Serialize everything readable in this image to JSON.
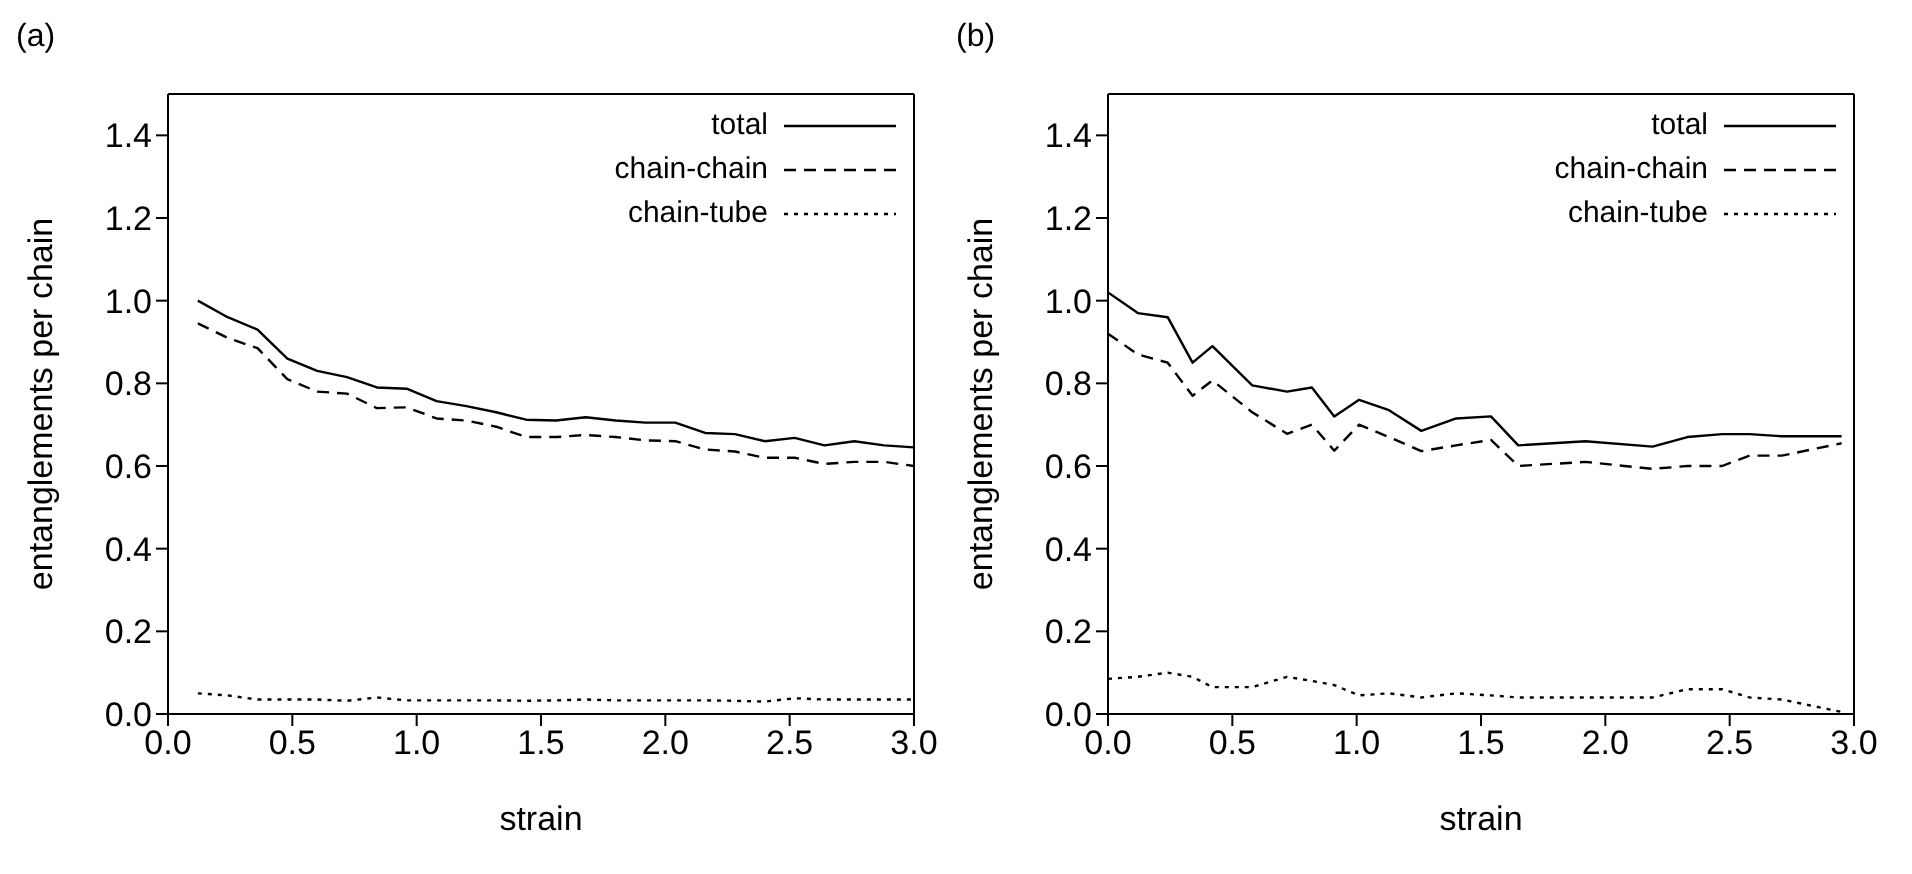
{
  "chart_data": [
    {
      "type": "line",
      "title": "(a)",
      "xlabel": "strain",
      "ylabel": "entanglements per chain",
      "xlim": [
        0,
        3
      ],
      "xticks": [
        {
          "value": 0,
          "label": "0.0"
        },
        {
          "value": 0.5,
          "label": "0.5"
        },
        {
          "value": 1,
          "label": "1.0"
        },
        {
          "value": 1.5,
          "label": "1.5"
        },
        {
          "value": 2,
          "label": "2.0"
        },
        {
          "value": 2.5,
          "label": "2.5"
        },
        {
          "value": 3,
          "label": "3.0"
        }
      ],
      "ylim": [
        0,
        1.5
      ],
      "yticks": [
        {
          "value": 0,
          "label": "0.0"
        },
        {
          "value": 0.2,
          "label": "0.2"
        },
        {
          "value": 0.4,
          "label": "0.4"
        },
        {
          "value": 0.6,
          "label": "0.6"
        },
        {
          "value": 0.8,
          "label": "0.8"
        },
        {
          "value": 1,
          "label": "1.0"
        },
        {
          "value": 1.2,
          "label": "1.2"
        },
        {
          "value": 1.4,
          "label": "1.4"
        }
      ],
      "legend": "top right",
      "grid": false,
      "marker": "none",
      "x": [
        0.12,
        0.24,
        0.36,
        0.48,
        0.6,
        0.72,
        0.84,
        0.96,
        1.08,
        1.2,
        1.32,
        1.44,
        1.56,
        1.68,
        1.8,
        1.92,
        2.04,
        2.16,
        2.28,
        2.4,
        2.52,
        2.64,
        2.76,
        2.88,
        3.0
      ],
      "series": [
        {
          "name": "total",
          "color": "#000000",
          "line_style": "solid",
          "values": [
            1.0,
            0.96,
            0.93,
            0.86,
            0.83,
            0.815,
            0.79,
            0.787,
            0.757,
            0.745,
            0.73,
            0.712,
            0.71,
            0.718,
            0.71,
            0.705,
            0.705,
            0.68,
            0.677,
            0.66,
            0.668,
            0.65,
            0.66,
            0.65,
            0.645
          ]
        },
        {
          "name": "chain-chain",
          "color": "#000000",
          "line_style": "dashed",
          "values": [
            0.945,
            0.91,
            0.885,
            0.81,
            0.78,
            0.775,
            0.74,
            0.742,
            0.715,
            0.71,
            0.695,
            0.67,
            0.67,
            0.675,
            0.67,
            0.662,
            0.66,
            0.64,
            0.635,
            0.62,
            0.62,
            0.605,
            0.61,
            0.61,
            0.6
          ]
        },
        {
          "name": "chain-tube",
          "color": "#000000",
          "line_style": "dotted",
          "values": [
            0.05,
            0.045,
            0.035,
            0.035,
            0.035,
            0.032,
            0.04,
            0.033,
            0.033,
            0.033,
            0.033,
            0.032,
            0.033,
            0.035,
            0.033,
            0.033,
            0.033,
            0.033,
            0.032,
            0.03,
            0.038,
            0.035,
            0.035,
            0.035,
            0.035
          ]
        }
      ]
    },
    {
      "type": "line",
      "title": "(b)",
      "xlabel": "strain",
      "ylabel": "entanglements per chain",
      "xlim": [
        0,
        3
      ],
      "xticks": [
        {
          "value": 0,
          "label": "0.0"
        },
        {
          "value": 0.5,
          "label": "0.5"
        },
        {
          "value": 1,
          "label": "1.0"
        },
        {
          "value": 1.5,
          "label": "1.5"
        },
        {
          "value": 2,
          "label": "2.0"
        },
        {
          "value": 2.5,
          "label": "2.5"
        },
        {
          "value": 3,
          "label": "3.0"
        }
      ],
      "ylim": [
        0,
        1.5
      ],
      "yticks": [
        {
          "value": 0,
          "label": "0.0"
        },
        {
          "value": 0.2,
          "label": "0.2"
        },
        {
          "value": 0.4,
          "label": "0.4"
        },
        {
          "value": 0.6,
          "label": "0.6"
        },
        {
          "value": 0.8,
          "label": "0.8"
        },
        {
          "value": 1,
          "label": "1.0"
        },
        {
          "value": 1.2,
          "label": "1.2"
        },
        {
          "value": 1.4,
          "label": "1.4"
        }
      ],
      "legend": "top right",
      "grid": false,
      "marker": "none",
      "x": [
        0,
        0.12,
        0.24,
        0.34,
        0.42,
        0.58,
        0.72,
        0.82,
        0.91,
        1.01,
        1.13,
        1.26,
        1.4,
        1.54,
        1.65,
        1.92,
        2.19,
        2.33,
        2.47,
        2.58,
        2.71,
        2.95
      ],
      "series": [
        {
          "name": "total",
          "color": "#000000",
          "line_style": "solid",
          "values": [
            1.02,
            0.97,
            0.96,
            0.85,
            0.89,
            0.795,
            0.78,
            0.79,
            0.72,
            0.76,
            0.735,
            0.685,
            0.715,
            0.72,
            0.65,
            0.66,
            0.647,
            0.67,
            0.677,
            0.677,
            0.672,
            0.672
          ]
        },
        {
          "name": "chain-chain",
          "color": "#000000",
          "line_style": "dashed",
          "values": [
            0.92,
            0.87,
            0.85,
            0.77,
            0.807,
            0.73,
            0.678,
            0.7,
            0.637,
            0.7,
            0.67,
            0.636,
            0.65,
            0.663,
            0.6,
            0.61,
            0.593,
            0.6,
            0.6,
            0.625,
            0.625,
            0.655
          ]
        },
        {
          "name": "chain-tube",
          "color": "#000000",
          "line_style": "dotted",
          "values": [
            0.085,
            0.09,
            0.1,
            0.09,
            0.065,
            0.065,
            0.09,
            0.08,
            0.07,
            0.045,
            0.05,
            0.04,
            0.05,
            0.045,
            0.04,
            0.04,
            0.04,
            0.06,
            0.06,
            0.04,
            0.035,
            0.005
          ]
        }
      ]
    }
  ]
}
